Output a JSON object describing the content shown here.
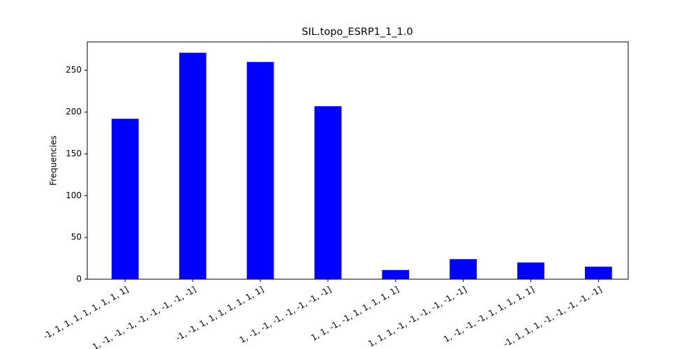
{
  "chart_data": {
    "type": "bar",
    "title": "SIL.topo_ESRP1_1_1.0",
    "y_label": "Frequencies",
    "categories": [
      "-1, 1, 1, 1, 1, 1, 1, 1, 1]",
      "1, -1, -1, -1, -1, -1, -1, -1, -1]",
      "-1, -1, 1, 1, 1, 1, 1, 1, 1]",
      "1, -1, -1, -1, -1, -1, -1, -1]",
      "1, 1, -1, -1, 1, 1, 1, 1, 1]",
      "1, 1, 1, -1, -1, -1, -1, -1, -1]",
      "1, -1, -1, -1, 1, 1, 1, 1, 1]",
      "-1, 1, 1, 1, -1, -1, -1, -1, -1]"
    ],
    "values": [
      192,
      271,
      260,
      207,
      11,
      24,
      20,
      15
    ],
    "color": "#0000ff",
    "ylim": [
      0,
      284
    ],
    "yticks": [
      0,
      50,
      100,
      150,
      200,
      250
    ]
  }
}
